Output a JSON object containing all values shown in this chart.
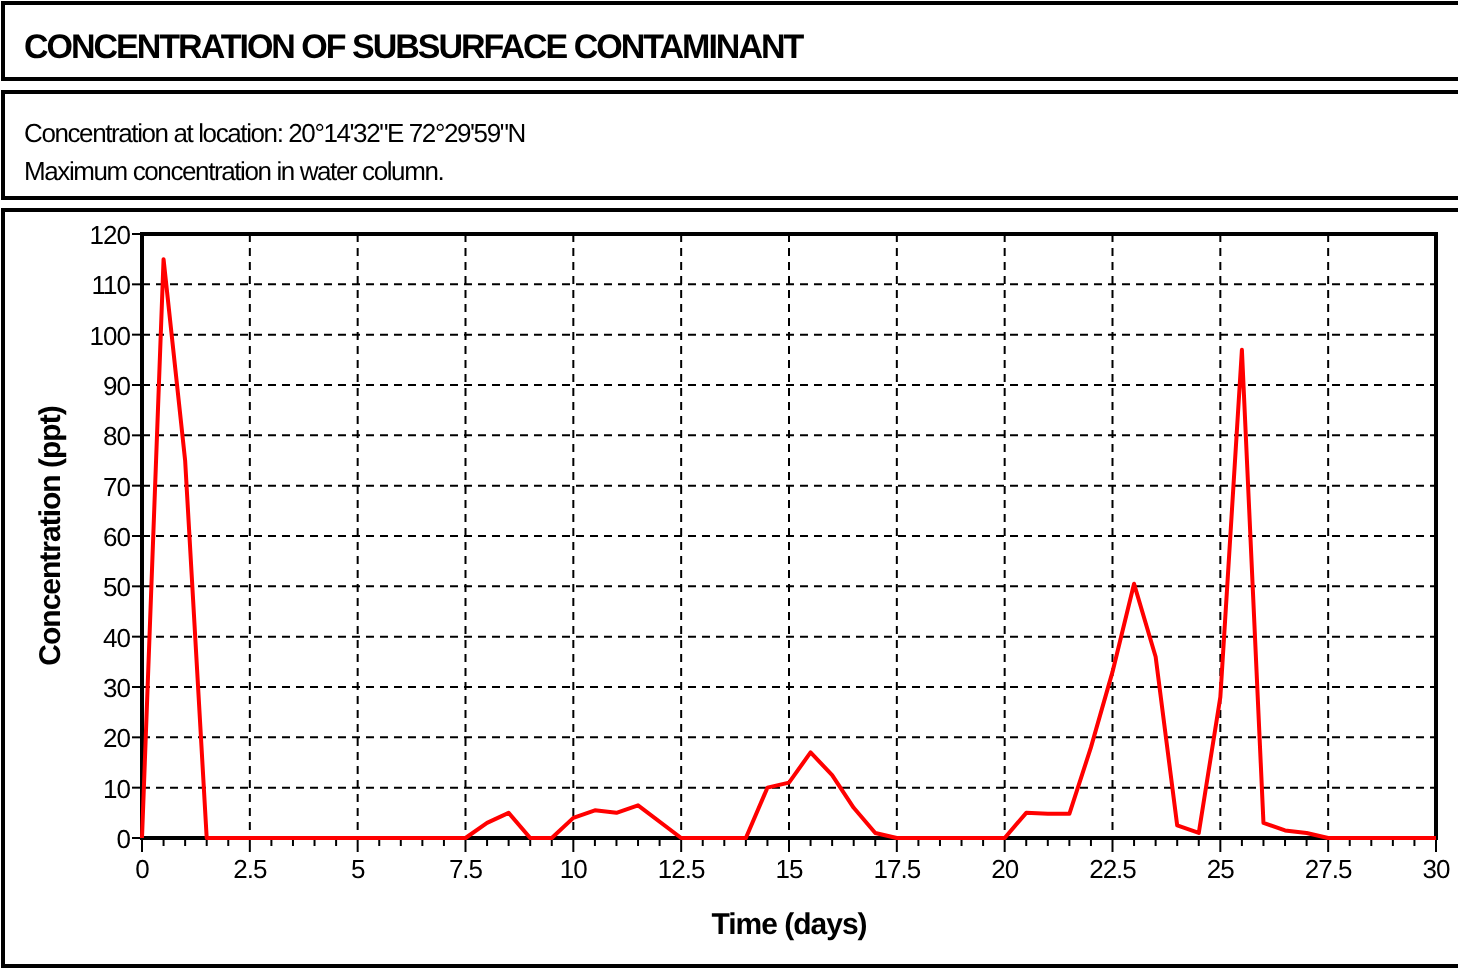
{
  "chart_data": {
    "type": "line",
    "title": "CONCENTRATION OF SUBSURFACE CONTAMINANT",
    "subtitle": "Concentration at location: 20°14'32\"E 72°29'59\"N\nMaximum concentration in water column.",
    "xlabel": "Time (days)",
    "ylabel": "Concentration (ppt)",
    "x": [
      0,
      0.5,
      1,
      1.5,
      7.5,
      8,
      8.5,
      9,
      9.5,
      10,
      10.5,
      11,
      11.5,
      12.5,
      14,
      14.5,
      15,
      15.5,
      16,
      16.5,
      17,
      17.5,
      20,
      20.5,
      21,
      21.5,
      22,
      22.5,
      23,
      23.5,
      24,
      24.5,
      25,
      25.5,
      26,
      26.5,
      27,
      27.5,
      30
    ],
    "series": [
      {
        "color": "#ff0000",
        "values": [
          0,
          115,
          75,
          0,
          0,
          3,
          5,
          0,
          0,
          4,
          5.5,
          5,
          6.5,
          0,
          0,
          10,
          11,
          17,
          12.5,
          6,
          1,
          0,
          0,
          5,
          4.8,
          4.8,
          18,
          33,
          50.5,
          36,
          2.5,
          1,
          28,
          97,
          3,
          1.5,
          1,
          0,
          0
        ]
      }
    ],
    "xlim": [
      0,
      30
    ],
    "xticks": [
      0,
      2.5,
      5,
      7.5,
      10,
      12.5,
      15,
      17.5,
      20,
      22.5,
      25,
      27.5,
      30
    ],
    "ylim": [
      0,
      120
    ],
    "yticks": [
      0,
      10,
      20,
      30,
      40,
      50,
      60,
      70,
      80,
      90,
      100,
      110,
      120
    ],
    "grid": true,
    "line_style": "solid",
    "marker": "none"
  }
}
